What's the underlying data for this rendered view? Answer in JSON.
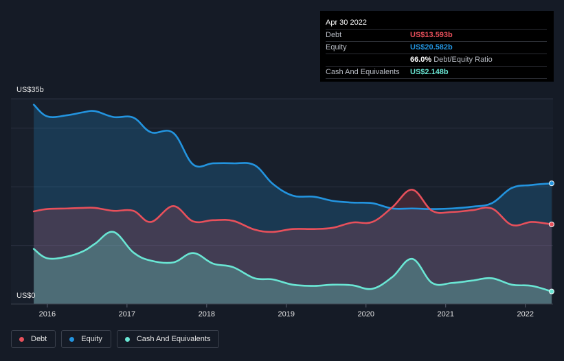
{
  "tooltip": {
    "date": "Apr 30 2022",
    "debt_label": "Debt",
    "debt_value": "US$13.593b",
    "equity_label": "Equity",
    "equity_value": "US$20.582b",
    "ratio_value": "66.0%",
    "ratio_label": "Debt/Equity Ratio",
    "cash_label": "Cash And Equivalents",
    "cash_value": "US$2.148b"
  },
  "legend": {
    "debt": "Debt",
    "equity": "Equity",
    "cash": "Cash And Equivalents"
  },
  "colors": {
    "debt": "#e8505b",
    "equity": "#2394df",
    "cash": "#6ae6d4",
    "background": "#151b26"
  },
  "chart_data": {
    "type": "area",
    "ylabel_top": "US$35b",
    "ylabel_bottom": "US$0",
    "ylim": [
      0,
      35
    ],
    "xlim": [
      2015.82,
      2022.33
    ],
    "x_ticks": [
      "2016",
      "2017",
      "2018",
      "2019",
      "2020",
      "2021",
      "2022"
    ],
    "x_tick_values": [
      2016,
      2017,
      2018,
      2019,
      2020,
      2021,
      2022
    ],
    "grid": true,
    "legend_position": "bottom-left",
    "series": [
      {
        "name": "Equity",
        "key": "equity",
        "x": [
          2015.83,
          2016.0,
          2016.25,
          2016.45,
          2016.6,
          2016.83,
          2017.08,
          2017.3,
          2017.58,
          2017.83,
          2018.08,
          2018.33,
          2018.6,
          2018.83,
          2019.08,
          2019.35,
          2019.58,
          2019.83,
          2020.08,
          2020.33,
          2020.58,
          2020.83,
          2021.08,
          2021.33,
          2021.58,
          2021.83,
          2022.08,
          2022.33
        ],
        "values": [
          34.0,
          32.0,
          32.2,
          32.7,
          32.9,
          31.9,
          31.8,
          29.3,
          29.2,
          23.8,
          24.0,
          24.0,
          23.7,
          20.5,
          18.5,
          18.3,
          17.6,
          17.3,
          17.2,
          16.3,
          16.3,
          16.2,
          16.3,
          16.6,
          17.2,
          19.8,
          20.3,
          20.582
        ]
      },
      {
        "name": "Debt",
        "key": "debt",
        "x": [
          2015.83,
          2016.0,
          2016.25,
          2016.45,
          2016.6,
          2016.83,
          2017.08,
          2017.3,
          2017.58,
          2017.83,
          2018.08,
          2018.33,
          2018.6,
          2018.83,
          2019.08,
          2019.35,
          2019.58,
          2019.83,
          2020.08,
          2020.33,
          2020.58,
          2020.83,
          2021.08,
          2021.33,
          2021.58,
          2021.83,
          2022.08,
          2022.33
        ],
        "values": [
          15.8,
          16.2,
          16.3,
          16.4,
          16.4,
          15.9,
          15.9,
          14.0,
          16.7,
          14.1,
          14.3,
          14.2,
          12.7,
          12.3,
          12.8,
          12.8,
          13.0,
          13.9,
          14.0,
          16.5,
          19.5,
          15.9,
          15.7,
          16.0,
          16.3,
          13.5,
          14.0,
          13.593
        ]
      },
      {
        "name": "Cash And Equivalents",
        "key": "cash",
        "x": [
          2015.83,
          2016.0,
          2016.25,
          2016.45,
          2016.6,
          2016.83,
          2017.08,
          2017.3,
          2017.58,
          2017.83,
          2018.08,
          2018.33,
          2018.6,
          2018.83,
          2019.08,
          2019.35,
          2019.58,
          2019.83,
          2020.08,
          2020.33,
          2020.58,
          2020.83,
          2021.08,
          2021.33,
          2021.58,
          2021.83,
          2022.08,
          2022.33
        ],
        "values": [
          9.4,
          7.8,
          8.1,
          9.0,
          10.3,
          12.3,
          8.8,
          7.4,
          7.1,
          8.7,
          6.9,
          6.3,
          4.4,
          4.2,
          3.3,
          3.1,
          3.3,
          3.2,
          2.6,
          4.6,
          7.7,
          3.6,
          3.6,
          4.0,
          4.4,
          3.3,
          3.1,
          2.148
        ]
      }
    ]
  }
}
